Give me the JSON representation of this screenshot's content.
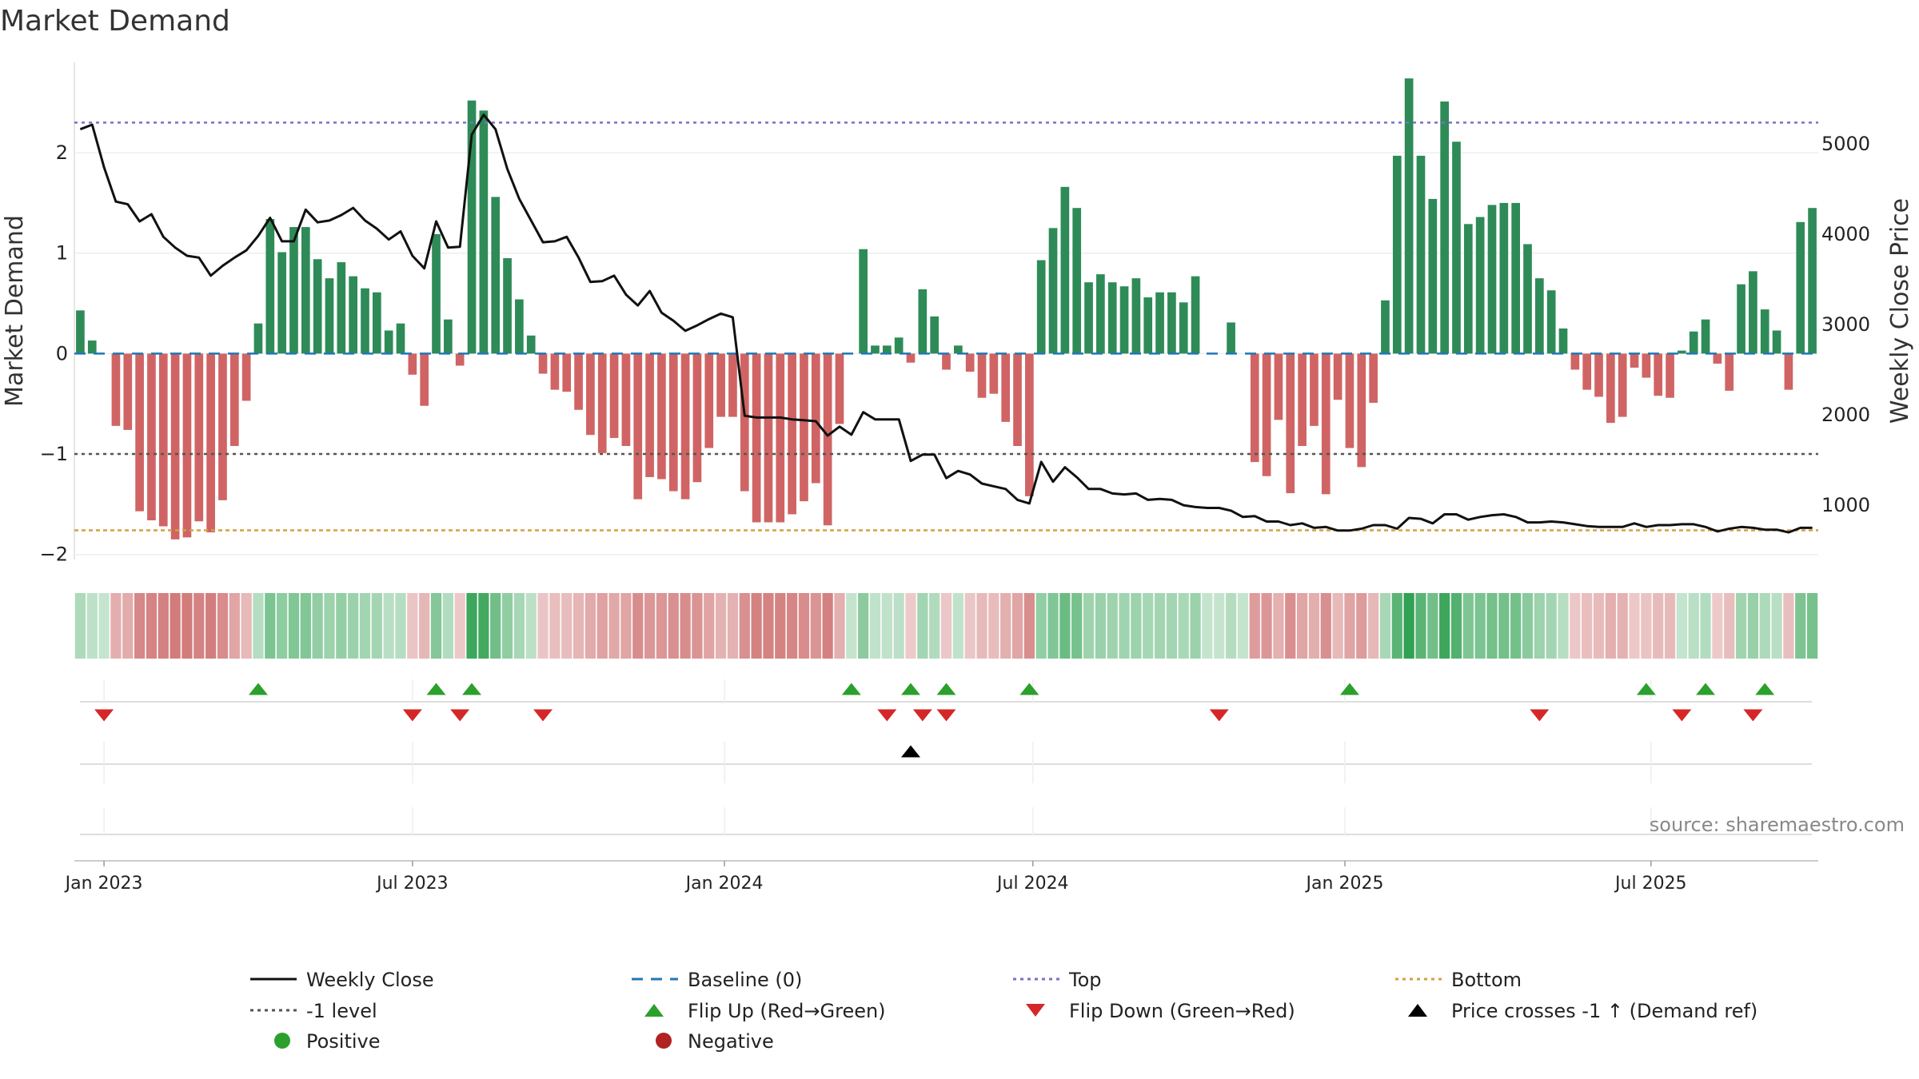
{
  "title": "Market Demand",
  "source": "source: sharemaestro.com",
  "colors": {
    "positive": "#2e8b57",
    "negative": "#cd5c5c",
    "close": "#111111",
    "baseline": "#1f77b4",
    "top": "#7b6fc9",
    "minus1": "#555555",
    "bottom": "#d4a040",
    "flip_up": "#2ca02c",
    "flip_down": "#d62728",
    "price_cross": "#000000",
    "legend_positive": "#2ca02c",
    "legend_negative": "#b22222"
  },
  "chart_data": {
    "type": "bar",
    "title": "Market Demand",
    "ylabel": "Market Demand",
    "y2label": "Weekly Close Price",
    "ylim": [
      -2.05,
      2.9
    ],
    "y2lim": [
      400,
      5900
    ],
    "yticks": [
      2,
      1,
      0,
      -1,
      -2
    ],
    "ytick_labels": [
      "2",
      "1",
      "0",
      "−1",
      "−2"
    ],
    "y2ticks": [
      5000,
      4000,
      3000,
      2000,
      1000
    ],
    "y2tick_labels": [
      "5000",
      "4000",
      "3000",
      "2000",
      "1000"
    ],
    "start_date": "2022-12-19",
    "xticks": [
      {
        "label": "Jan 2023",
        "week": 2
      },
      {
        "label": "Jul 2023",
        "week": 28
      },
      {
        "label": "Jan 2024",
        "week": 54.3
      },
      {
        "label": "Jul 2024",
        "week": 80.3
      },
      {
        "label": "Jan 2025",
        "week": 106.6
      },
      {
        "label": "Jul 2025",
        "week": 132.4
      }
    ],
    "reference_lines": {
      "top": 2.3,
      "minus1": -1,
      "bottom": -1.76,
      "baseline": 0
    },
    "demand": [
      0.43,
      0.13,
      0,
      -0.72,
      -0.76,
      -1.57,
      -1.66,
      -1.72,
      -1.85,
      -1.83,
      -1.67,
      -1.78,
      -1.46,
      -0.92,
      -0.47,
      0.3,
      1.34,
      1.01,
      1.26,
      1.26,
      0.94,
      0.75,
      0.91,
      0.77,
      0.65,
      0.61,
      0.23,
      0.3,
      -0.21,
      -0.52,
      1.19,
      0.34,
      -0.12,
      2.52,
      2.42,
      1.56,
      0.95,
      0.54,
      0.18,
      -0.2,
      -0.36,
      -0.38,
      -0.56,
      -0.81,
      -0.99,
      -0.84,
      -0.92,
      -1.45,
      -1.23,
      -1.25,
      -1.37,
      -1.45,
      -1.28,
      -0.94,
      -0.63,
      -0.63,
      -1.37,
      -1.68,
      -1.68,
      -1.68,
      -1.6,
      -1.47,
      -1.29,
      -1.71,
      -0.7,
      0,
      1.04,
      0.08,
      0.08,
      0.16,
      -0.09,
      0.64,
      0.37,
      -0.16,
      0.08,
      -0.18,
      -0.44,
      -0.4,
      -0.68,
      -0.92,
      -1.42,
      0.93,
      1.25,
      1.66,
      1.45,
      0.71,
      0.79,
      0.71,
      0.67,
      0.75,
      0.56,
      0.61,
      0.61,
      0.51,
      0.77,
      0.0,
      0.0,
      0.31,
      0,
      -1.08,
      -1.22,
      -0.66,
      -1.39,
      -0.92,
      -0.72,
      -1.4,
      -0.46,
      -0.94,
      -1.13,
      -0.49,
      0.53,
      1.97,
      2.74,
      1.97,
      1.54,
      2.51,
      2.11,
      1.29,
      1.36,
      1.48,
      1.5,
      1.5,
      1.09,
      0.75,
      0.63,
      0.25,
      -0.16,
      -0.36,
      -0.43,
      -0.69,
      -0.63,
      -0.14,
      -0.24,
      -0.42,
      -0.44,
      0.03,
      0.22,
      0.34,
      -0.1,
      -0.37,
      0.69,
      0.82,
      0.44,
      0.23,
      -0.36,
      1.31,
      1.45
    ],
    "close": [
      5160,
      5210,
      4740,
      4360,
      4330,
      4140,
      4220,
      3970,
      3850,
      3760,
      3740,
      3540,
      3650,
      3740,
      3820,
      3980,
      4180,
      3920,
      3920,
      4270,
      4130,
      4150,
      4210,
      4290,
      4150,
      4060,
      3940,
      4030,
      3760,
      3620,
      4140,
      3850,
      3860,
      5100,
      5320,
      5160,
      4720,
      4390,
      4150,
      3910,
      3920,
      3970,
      3740,
      3470,
      3480,
      3540,
      3330,
      3210,
      3370,
      3130,
      3040,
      2930,
      2990,
      3060,
      3120,
      3080,
      1990,
      1970,
      1970,
      1970,
      1950,
      1940,
      1930,
      1770,
      1870,
      1780,
      2030,
      1950,
      1950,
      1950,
      1490,
      1560,
      1560,
      1300,
      1380,
      1340,
      1240,
      1210,
      1180,
      1060,
      1020,
      1480,
      1260,
      1420,
      1310,
      1180,
      1180,
      1130,
      1120,
      1130,
      1060,
      1070,
      1060,
      1000,
      980,
      970,
      970,
      940,
      870,
      880,
      820,
      820,
      780,
      800,
      750,
      760,
      720,
      720,
      740,
      780,
      780,
      740,
      860,
      850,
      800,
      900,
      900,
      840,
      870,
      890,
      900,
      870,
      810,
      810,
      820,
      810,
      790,
      770,
      760,
      760,
      760,
      800,
      760,
      780,
      780,
      790,
      790,
      760,
      710,
      740,
      760,
      750,
      730,
      730,
      700,
      750,
      750
    ],
    "flip_up": [
      15,
      30,
      33,
      65,
      70,
      73,
      80,
      107,
      132,
      137,
      142
    ],
    "flip_down": [
      2,
      28,
      32,
      39,
      68,
      71,
      73,
      96,
      123,
      135,
      141
    ],
    "price_cross": [
      70
    ]
  },
  "legend": [
    {
      "label": "Weekly Close",
      "symbol": "line",
      "color_key": "close"
    },
    {
      "label": "Baseline (0)",
      "symbol": "dash",
      "color_key": "baseline"
    },
    {
      "label": "Top",
      "symbol": "dot",
      "color_key": "top"
    },
    {
      "label": "Bottom",
      "symbol": "dot",
      "color_key": "bottom"
    },
    {
      "label": "-1 level",
      "symbol": "dot",
      "color_key": "minus1"
    },
    {
      "label": "Flip Up (Red→Green)",
      "symbol": "tri-up",
      "color_key": "flip_up"
    },
    {
      "label": "Flip Down (Green→Red)",
      "symbol": "tri-down",
      "color_key": "flip_down"
    },
    {
      "label": "Price crosses -1 ↑ (Demand ref)",
      "symbol": "tri-up",
      "color_key": "price_cross"
    },
    {
      "label": "Positive",
      "symbol": "circle",
      "color_key": "legend_positive"
    },
    {
      "label": "Negative",
      "symbol": "circle",
      "color_key": "legend_negative"
    }
  ]
}
